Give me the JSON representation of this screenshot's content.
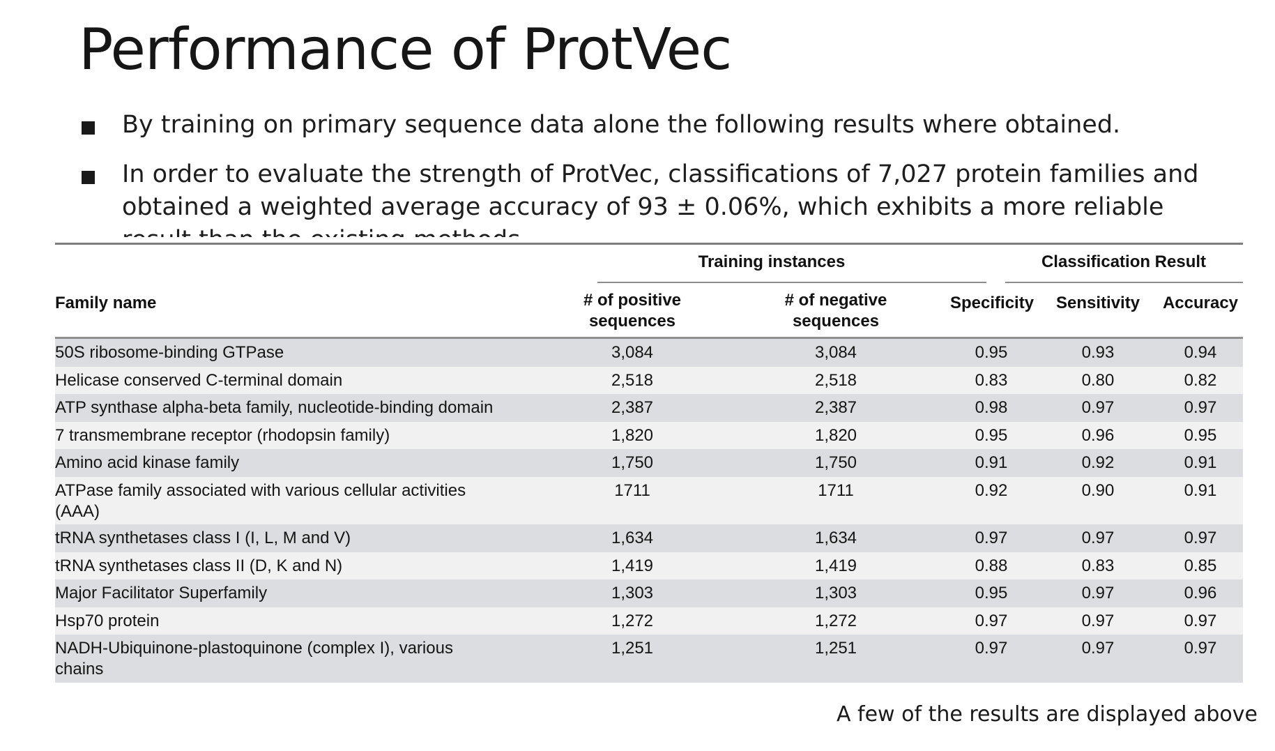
{
  "slide": {
    "title": "Performance of ProtVec",
    "bullets": [
      "By training on primary sequence data alone the following results where obtained.",
      "In order to evaluate the strength of ProtVec, classifications of 7,027 protein families and obtained a weighted average accuracy of 93 ± 0.06%, which exhibits a more reliable result than the existing methods."
    ],
    "caption": "A few of the results are displayed above"
  },
  "table": {
    "group_headers": {
      "training": "Training instances",
      "classification": "Classification Result"
    },
    "columns": {
      "family": "Family name",
      "positive_line1": "# of positive",
      "positive_line2": "sequences",
      "negative_line1": "# of negative",
      "negative_line2": "sequences",
      "specificity": "Specificity",
      "sensitivity": "Sensitivity",
      "accuracy": "Accuracy"
    },
    "rows": [
      {
        "family": "50S ribosome-binding GTPase",
        "positive": "3,084",
        "negative": "3,084",
        "specificity": "0.95",
        "sensitivity": "0.93",
        "accuracy": "0.94"
      },
      {
        "family": "Helicase conserved C-terminal domain",
        "positive": "2,518",
        "negative": "2,518",
        "specificity": "0.83",
        "sensitivity": "0.80",
        "accuracy": "0.82"
      },
      {
        "family": "ATP synthase alpha-beta family, nucleotide-binding domain",
        "positive": "2,387",
        "negative": "2,387",
        "specificity": "0.98",
        "sensitivity": "0.97",
        "accuracy": "0.97"
      },
      {
        "family": "7 transmembrane receptor (rhodopsin family)",
        "positive": "1,820",
        "negative": "1,820",
        "specificity": "0.95",
        "sensitivity": "0.96",
        "accuracy": "0.95"
      },
      {
        "family": "Amino acid kinase family",
        "positive": "1,750",
        "negative": "1,750",
        "specificity": "0.91",
        "sensitivity": "0.92",
        "accuracy": "0.91"
      },
      {
        "family": "ATPase family associated with various cellular activities (AAA)",
        "positive": "1711",
        "negative": "1711",
        "specificity": "0.92",
        "sensitivity": "0.90",
        "accuracy": "0.91"
      },
      {
        "family": "tRNA synthetases class I (I, L, M and V)",
        "positive": "1,634",
        "negative": "1,634",
        "specificity": "0.97",
        "sensitivity": "0.97",
        "accuracy": "0.97"
      },
      {
        "family": "tRNA synthetases class II (D, K and N)",
        "positive": "1,419",
        "negative": "1,419",
        "specificity": "0.88",
        "sensitivity": "0.83",
        "accuracy": "0.85"
      },
      {
        "family": "Major Facilitator Superfamily",
        "positive": "1,303",
        "negative": "1,303",
        "specificity": "0.95",
        "sensitivity": "0.97",
        "accuracy": "0.96"
      },
      {
        "family": "Hsp70 protein",
        "positive": "1,272",
        "negative": "1,272",
        "specificity": "0.97",
        "sensitivity": "0.97",
        "accuracy": "0.97"
      },
      {
        "family": "NADH-Ubiquinone-plastoquinone (complex I), various chains",
        "positive": "1,251",
        "negative": "1,251",
        "specificity": "0.97",
        "sensitivity": "0.97",
        "accuracy": "0.97"
      }
    ]
  }
}
